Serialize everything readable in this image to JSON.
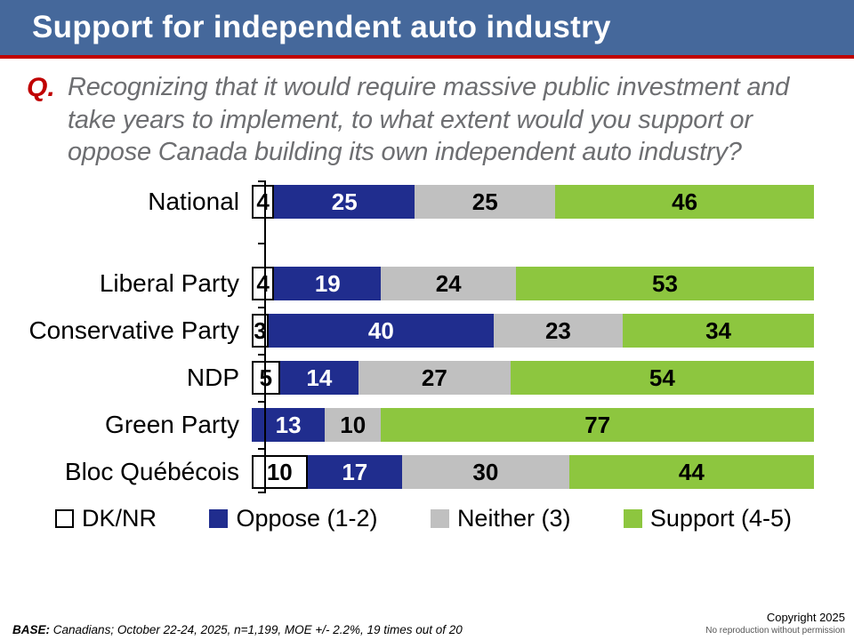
{
  "header": {
    "title": "Support for independent auto industry"
  },
  "question": {
    "prefix": "Q.",
    "text": "Recognizing that it would require massive public investment and take years to implement, to what extent would you support or oppose Canada building its own independent auto industry?"
  },
  "chart_data": {
    "type": "bar",
    "orientation": "horizontal_stacked",
    "categories": [
      "National",
      "Liberal Party",
      "Conservative Party",
      "NDP",
      "Green Party",
      "Bloc Québécois"
    ],
    "series": [
      {
        "name": "DK/NR",
        "color": "#FFFFFF",
        "text_color": "#000000",
        "values": [
          4,
          4,
          3,
          5,
          0,
          10
        ]
      },
      {
        "name": "Oppose (1-2)",
        "color": "#202D8E",
        "text_color": "#FFFFFF",
        "values": [
          25,
          19,
          40,
          14,
          13,
          17
        ]
      },
      {
        "name": "Neither (3)",
        "color": "#C0C0C0",
        "text_color": "#000000",
        "values": [
          25,
          24,
          23,
          27,
          10,
          30
        ]
      },
      {
        "name": "Support (4-5)",
        "color": "#8DC63F",
        "text_color": "#000000",
        "values": [
          46,
          53,
          34,
          54,
          77,
          44
        ]
      }
    ],
    "xlim": [
      0,
      100
    ],
    "value_labels": "inside",
    "legend_position": "bottom",
    "grid": false
  },
  "legend": [
    {
      "label": "DK/NR",
      "color": "#FFFFFF",
      "border": "#000000"
    },
    {
      "label": "Oppose (1-2)",
      "color": "#202D8E"
    },
    {
      "label": "Neither (3)",
      "color": "#C0C0C0"
    },
    {
      "label": "Support (4-5)",
      "color": "#8DC63F"
    }
  ],
  "footer": {
    "base_label": "BASE:",
    "base_text": " Canadians; October 22-24, 2025, n=1,199, MOE +/- 2.2%, 19 times out of 20",
    "copyright_line1": "Copyright 2025",
    "copyright_line2": "No reproduction without permission"
  },
  "colors": {
    "title_bar": "#45689B",
    "accent_red": "#C00000",
    "question_gray": "#6D6E71"
  }
}
